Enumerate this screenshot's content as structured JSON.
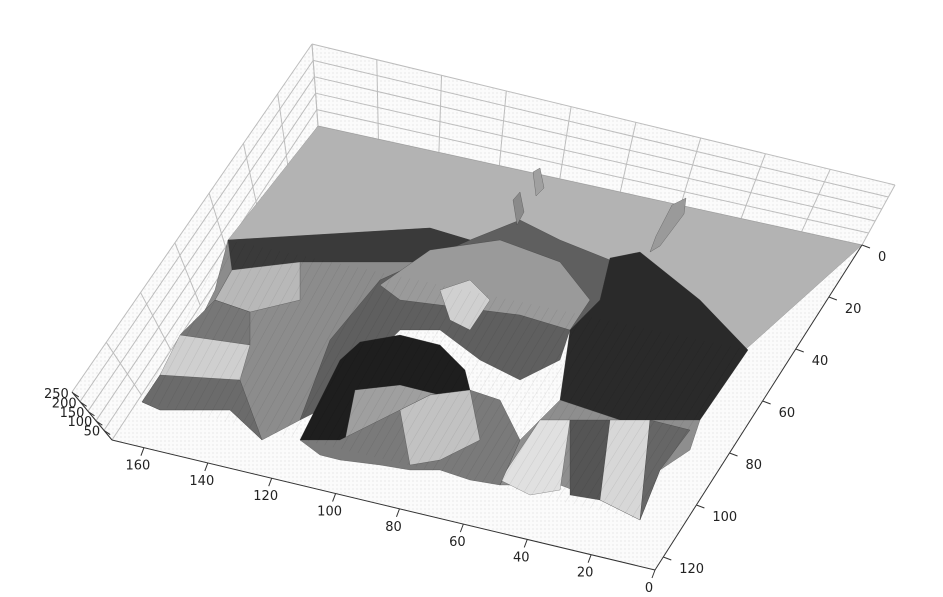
{
  "chart_data": {
    "type": "surface",
    "title": "",
    "colormap": "gray",
    "grid": true,
    "x_axis": {
      "label": "",
      "ticks": [
        0,
        20,
        40,
        60,
        80,
        100,
        120,
        140,
        160
      ],
      "range": [
        0,
        170
      ]
    },
    "y_axis": {
      "label": "",
      "ticks": [
        0,
        20,
        40,
        60,
        80,
        100,
        120
      ],
      "range": [
        0,
        125
      ]
    },
    "z_axis": {
      "label": "",
      "ticks": [
        50,
        100,
        150,
        200,
        250
      ],
      "range": [
        0,
        255
      ]
    },
    "surface_description_values": {
      "base_level": 0,
      "max_level": 255
    }
  }
}
